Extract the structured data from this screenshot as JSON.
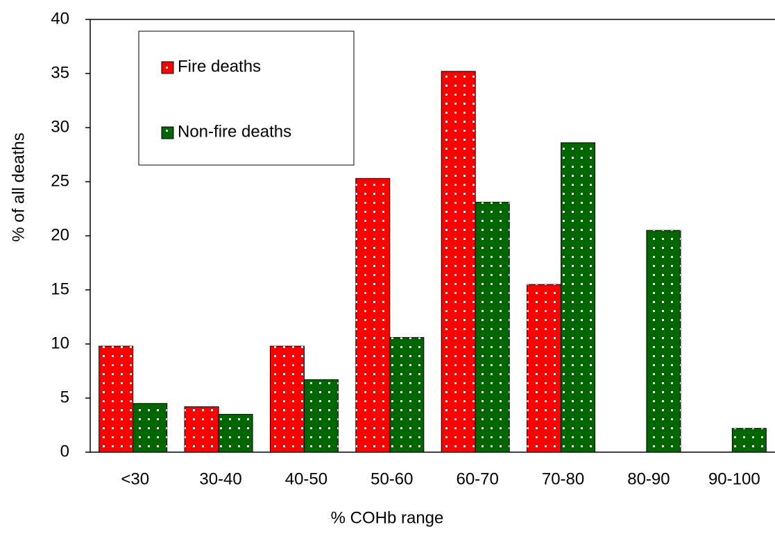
{
  "chart_data": {
    "type": "bar",
    "x_label": "% COHb range",
    "y_label": "% of all deaths",
    "categories": [
      "<30",
      "30-40",
      "40-50",
      "50-60",
      "60-70",
      "70-80",
      "80-90",
      "90-100"
    ],
    "series": [
      {
        "name": "Fire deaths",
        "color": "#ff0000",
        "values": [
          9.8,
          4.2,
          9.8,
          25.3,
          35.2,
          15.5,
          0,
          0
        ]
      },
      {
        "name": "Non-fire deaths",
        "color": "#006600",
        "values": [
          4.5,
          3.5,
          6.7,
          10.6,
          23.1,
          28.6,
          20.5,
          2.2
        ]
      }
    ],
    "ylim": [
      0,
      40
    ],
    "yticks": [
      0,
      5,
      10,
      15,
      20,
      25,
      30,
      35,
      40
    ],
    "legend": "upper left"
  }
}
